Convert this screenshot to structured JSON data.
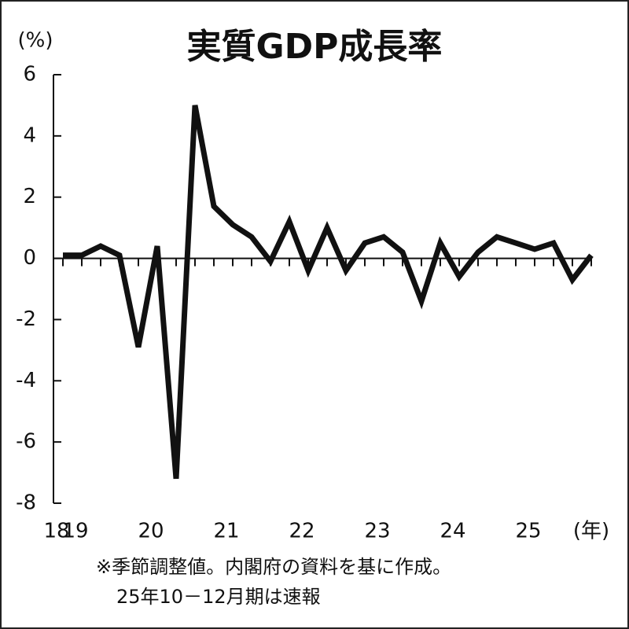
{
  "chart_data": {
    "type": "line",
    "title": "実質GDP成長率",
    "y_unit": "(%)",
    "x_unit": "(年)",
    "notes": [
      "※季節調整値。内閣府の資料を基に作成。",
      "25年10－12月期は速報"
    ],
    "categories": [
      "18",
      "19",
      null,
      null,
      null,
      "20",
      null,
      null,
      null,
      "21",
      null,
      null,
      null,
      "22",
      null,
      null,
      null,
      "23",
      null,
      null,
      null,
      "24",
      null,
      null,
      null,
      "25",
      null,
      null,
      null
    ],
    "values": [
      0.1,
      0.1,
      0.4,
      0.1,
      -2.9,
      0.4,
      -7.2,
      5.0,
      1.7,
      1.1,
      0.7,
      -0.1,
      1.2,
      -0.4,
      1.0,
      -0.4,
      0.5,
      0.7,
      0.2,
      -1.4,
      0.5,
      -0.6,
      0.2,
      0.7,
      0.5,
      0.3,
      0.5,
      -0.7,
      0.1
    ],
    "color": "#111111",
    "ylim": [
      -8,
      6
    ],
    "yticks": [
      6,
      4,
      2,
      0,
      -2,
      -4,
      -6,
      -8
    ]
  }
}
